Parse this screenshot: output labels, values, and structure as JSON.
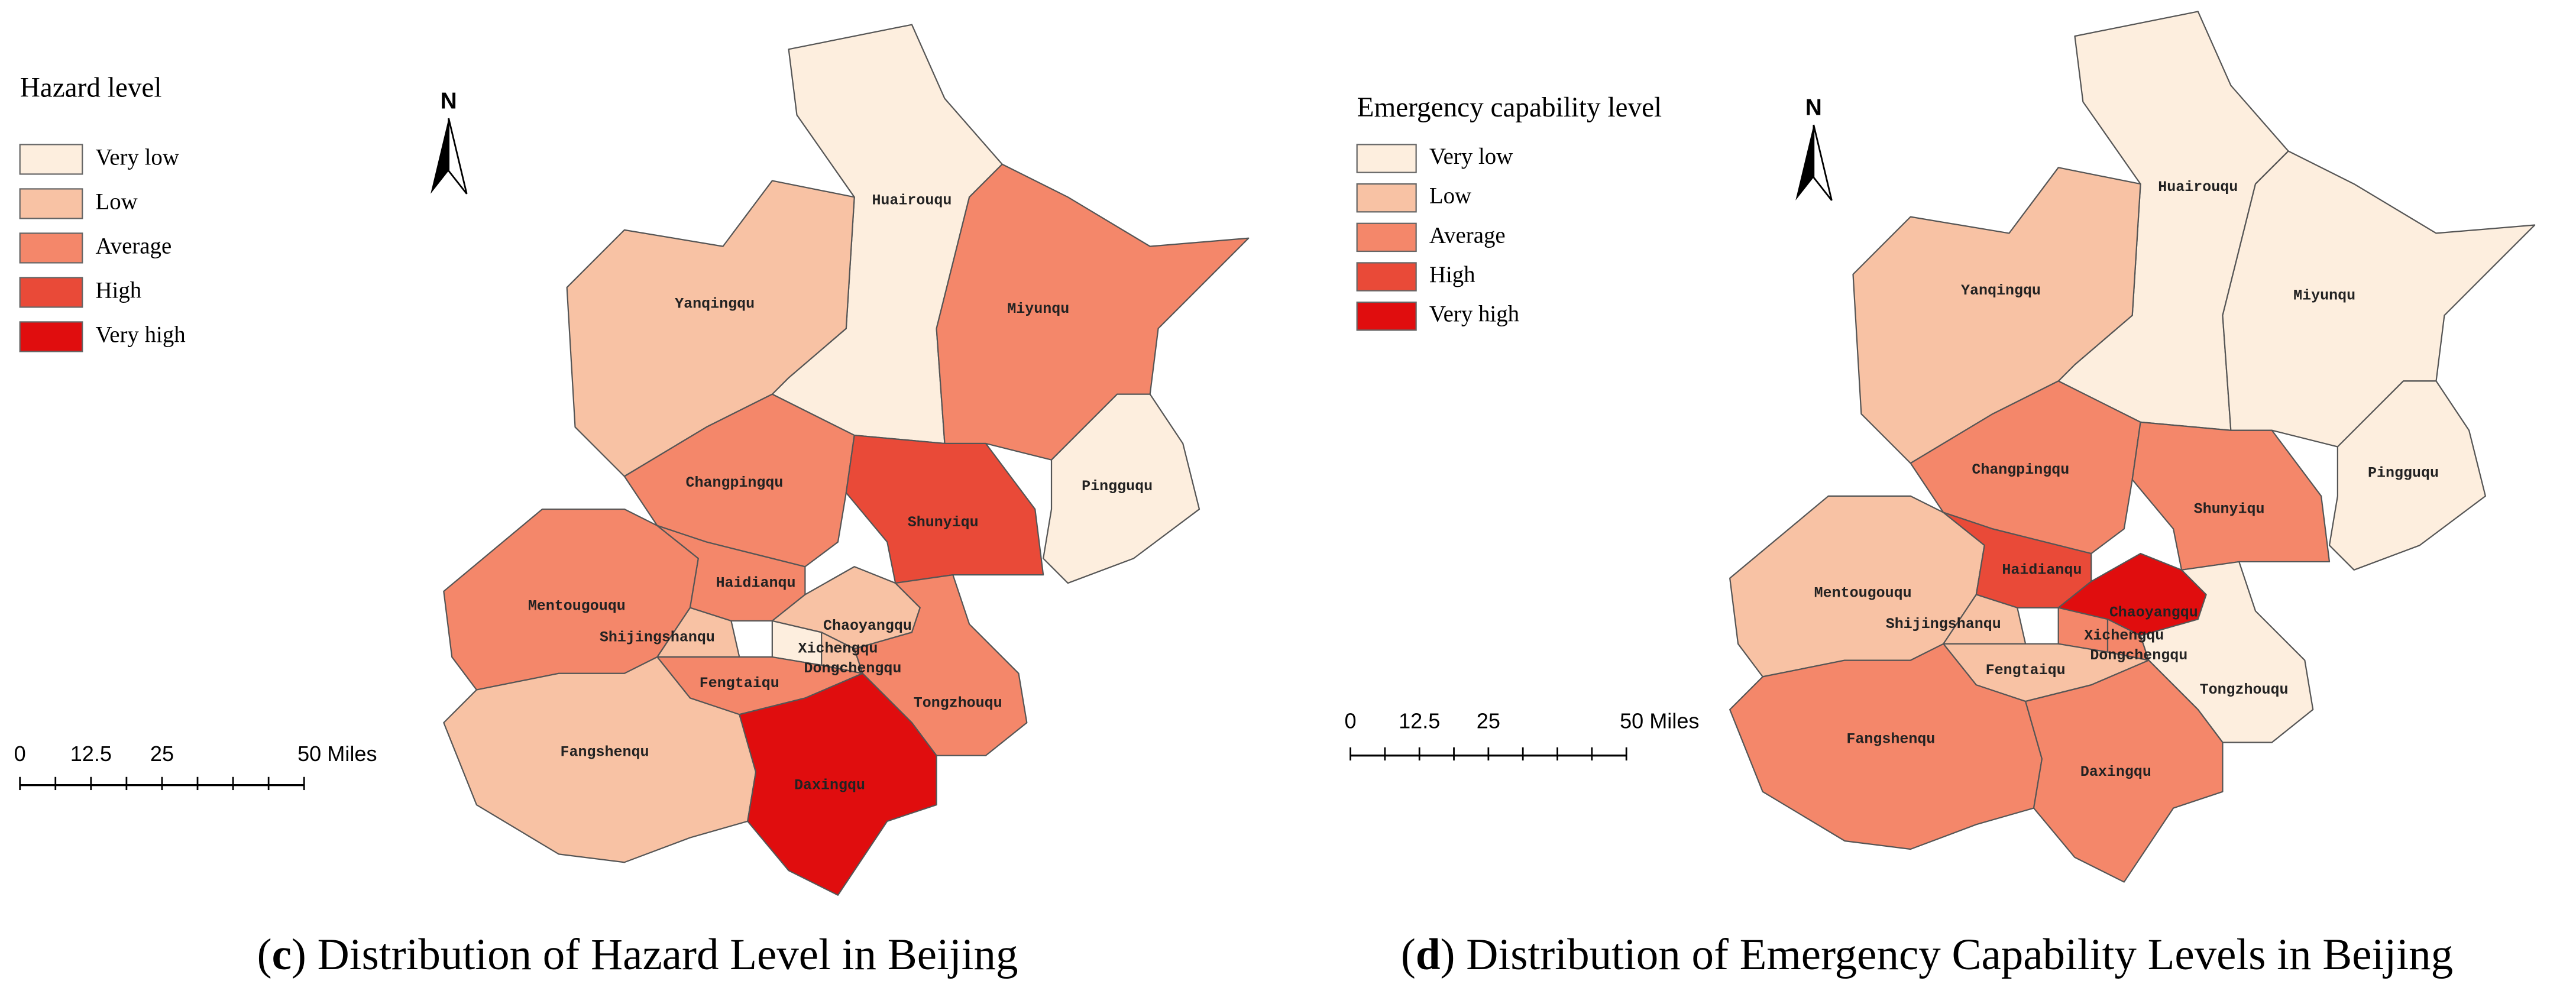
{
  "panels": [
    {
      "caption": {
        "open": "(",
        "letter": "c",
        "text": ") Distribution of Hazard Level in Beijing"
      },
      "legend": {
        "title": "Hazard level",
        "items": [
          {
            "label": "Very low",
            "color": "#fdeede"
          },
          {
            "label": "Low",
            "color": "#f8c2a4"
          },
          {
            "label": "Average",
            "color": "#f4876a"
          },
          {
            "label": "High",
            "color": "#e94a38"
          },
          {
            "label": "Very high",
            "color": "#e00d0e"
          }
        ]
      },
      "north": "N",
      "scale_bar": {
        "labels": [
          "0",
          "12.5",
          "25",
          "50 Miles"
        ]
      },
      "districts": [
        {
          "name": "Huairouqu",
          "color": "#fdeede"
        },
        {
          "name": "Yanqingqu",
          "color": "#f8c2a4"
        },
        {
          "name": "Miyunqu",
          "color": "#f4876a"
        },
        {
          "name": "Pingguqu",
          "color": "#fdeede"
        },
        {
          "name": "Changpingqu",
          "color": "#f4876a"
        },
        {
          "name": "Shunyiqu",
          "color": "#e94a38"
        },
        {
          "name": "Mentougouqu",
          "color": "#f4876a"
        },
        {
          "name": "Haidianqu",
          "color": "#f4876a"
        },
        {
          "name": "Shijingshanqu",
          "color": "#f8c2a4"
        },
        {
          "name": "Chaoyangqu",
          "color": "#f8c2a4"
        },
        {
          "name": "Xichengqu",
          "color": "#fdeede"
        },
        {
          "name": "Dongchengqu",
          "color": "#f8c2a4"
        },
        {
          "name": "Fengtaiqu",
          "color": "#f4876a"
        },
        {
          "name": "Tongzhouqu",
          "color": "#f4876a"
        },
        {
          "name": "Fangshenqu",
          "color": "#f8c2a4"
        },
        {
          "name": "Daxingqu",
          "color": "#e00d0e"
        }
      ]
    },
    {
      "caption": {
        "open": "(",
        "letter": "d",
        "text": ") Distribution of Emergency  Capability Levels in Beijing"
      },
      "legend": {
        "title": "Emergency capability level",
        "items": [
          {
            "label": "Very low",
            "color": "#fdeede"
          },
          {
            "label": "Low",
            "color": "#f8c2a4"
          },
          {
            "label": "Average",
            "color": "#f4876a"
          },
          {
            "label": "High",
            "color": "#e94a38"
          },
          {
            "label": "Very high",
            "color": "#e00d0e"
          }
        ]
      },
      "north": "N",
      "scale_bar": {
        "labels": [
          "0",
          "12.5",
          "25",
          "50 Miles"
        ]
      },
      "districts": [
        {
          "name": "Huairouqu",
          "color": "#fdeede"
        },
        {
          "name": "Yanqingqu",
          "color": "#f8c2a4"
        },
        {
          "name": "Miyunqu",
          "color": "#fdeede"
        },
        {
          "name": "Pingguqu",
          "color": "#fdeede"
        },
        {
          "name": "Changpingqu",
          "color": "#f4876a"
        },
        {
          "name": "Shunyiqu",
          "color": "#f4876a"
        },
        {
          "name": "Mentougouqu",
          "color": "#f8c2a4"
        },
        {
          "name": "Haidianqu",
          "color": "#e94a38"
        },
        {
          "name": "Shijingshanqu",
          "color": "#f8c2a4"
        },
        {
          "name": "Chaoyangqu",
          "color": "#e00d0e"
        },
        {
          "name": "Xichengqu",
          "color": "#f4876a"
        },
        {
          "name": "Dongchengqu",
          "color": "#f4876a"
        },
        {
          "name": "Fengtaiqu",
          "color": "#f8c2a4"
        },
        {
          "name": "Tongzhouqu",
          "color": "#fdeede"
        },
        {
          "name": "Fangshenqu",
          "color": "#f4876a"
        },
        {
          "name": "Daxingqu",
          "color": "#f4876a"
        }
      ]
    }
  ]
}
